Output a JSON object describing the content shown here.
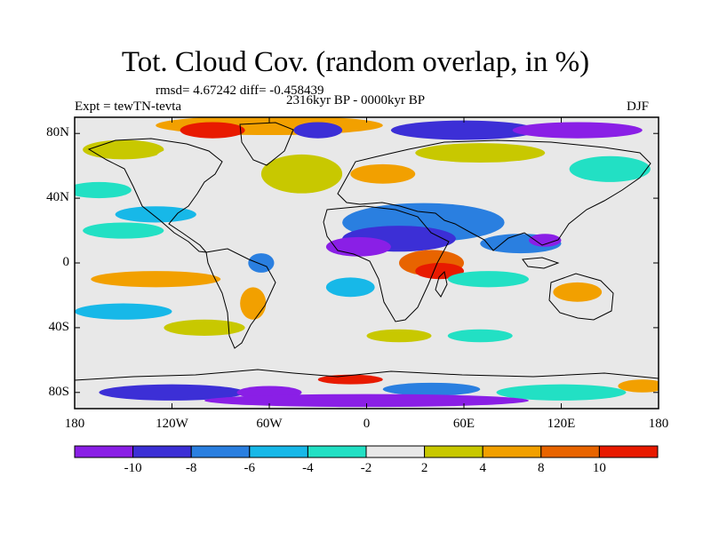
{
  "title": "Tot. Cloud Cov. (random overlap, in %)",
  "stats": "rmsd= 4.67242 diff= -0.458439",
  "experiment": "Expt = tewTN-tevta",
  "period": "2316kyr BP - 0000kyr BP",
  "season": "DJF",
  "lat_labels": [
    "80N",
    "40N",
    "0",
    "40S",
    "80S"
  ],
  "lat_values": [
    80,
    40,
    0,
    -40,
    -80
  ],
  "lon_labels": [
    "180",
    "120W",
    "60W",
    "0",
    "60E",
    "120E",
    "180"
  ],
  "lon_values": [
    -180,
    -120,
    -60,
    0,
    60,
    120,
    180
  ],
  "colorbar": {
    "levels": [
      "-10",
      "-8",
      "-6",
      "-4",
      "-2",
      "2",
      "4",
      "8",
      "10"
    ],
    "colors": [
      "#8a1fe6",
      "#3c2fd6",
      "#2a7fe0",
      "#17b8e8",
      "#22e0c4",
      "#e8e8e8",
      "#c8c800",
      "#f2a000",
      "#e86400",
      "#e81a00"
    ]
  },
  "colors": {
    "land_fill": "#e8e8e8",
    "coastline": "#000000",
    "frame": "#000000"
  },
  "map": {
    "projection": "cylindrical equidistant",
    "lon_range": [
      -180,
      180
    ],
    "lat_range": [
      -90,
      90
    ]
  }
}
